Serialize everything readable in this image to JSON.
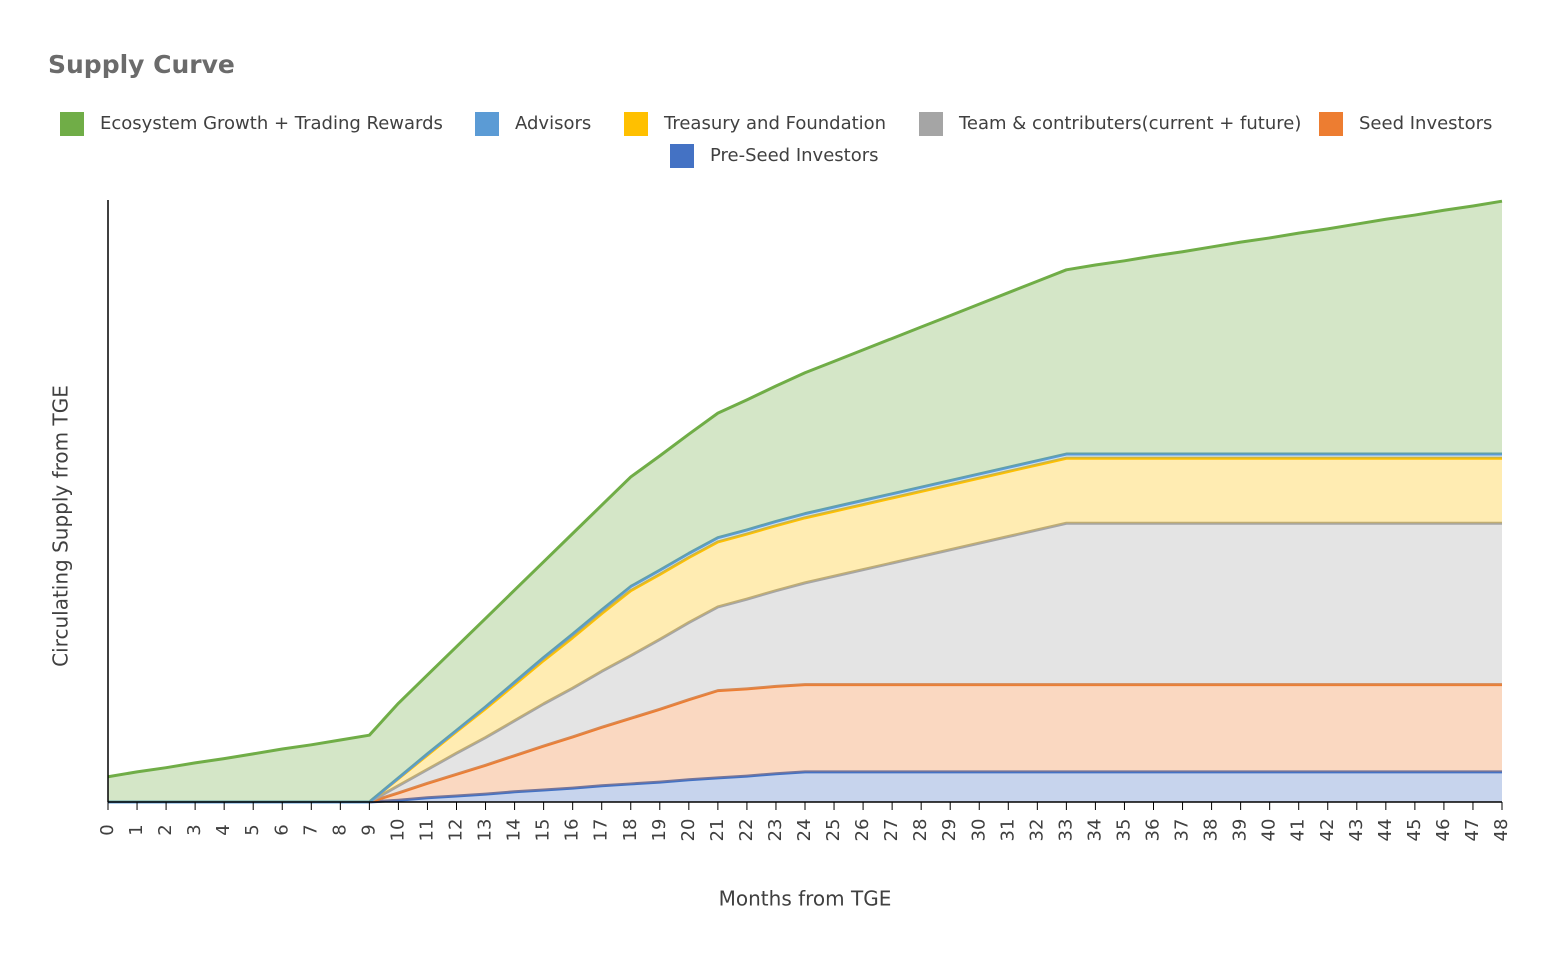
{
  "chart_data": {
    "type": "stacked_area",
    "title": "Supply Curve",
    "x_label": "Months from TGE",
    "y_label": "Circulating Supply from TGE",
    "categories": [
      "0",
      "1",
      "2",
      "3",
      "4",
      "5",
      "6",
      "7",
      "8",
      "9",
      "10",
      "11",
      "12",
      "13",
      "14",
      "15",
      "16",
      "17",
      "18",
      "19",
      "20",
      "21",
      "22",
      "23",
      "24",
      "25",
      "26",
      "27",
      "28",
      "29",
      "30",
      "31",
      "32",
      "33",
      "34",
      "35",
      "36",
      "37",
      "38",
      "39",
      "40",
      "41",
      "42",
      "43",
      "44",
      "45",
      "46",
      "47",
      "48"
    ],
    "ylim": [
      0,
      100
    ],
    "series": [
      {
        "name": "Ecosystem Growth + Trading Rewards",
        "color": "#70ad47",
        "values": [
          4.2,
          5.0,
          5.7,
          6.5,
          7.2,
          8.0,
          8.8,
          9.5,
          10.3,
          11.1,
          12.4,
          13.1,
          13.9,
          14.7,
          15.3,
          15.9,
          16.7,
          17.4,
          18.2,
          19.0,
          19.8,
          20.7,
          21.6,
          22.5,
          23.4,
          24.2,
          25.0,
          25.8,
          26.6,
          27.4,
          28.2,
          29.0,
          29.8,
          30.6,
          31.4,
          32.1,
          32.9,
          33.6,
          34.4,
          35.2,
          35.9,
          36.7,
          37.4,
          38.2,
          39.0,
          39.7,
          40.5,
          41.2,
          42.0
        ]
      },
      {
        "name": "Advisors",
        "color": "#5b9bd5",
        "values": [
          0,
          0,
          0,
          0,
          0,
          0,
          0,
          0,
          0,
          0,
          0.1,
          0.2,
          0.2,
          0.3,
          0.4,
          0.5,
          0.6,
          0.6,
          0.7,
          0.7,
          0.7,
          0.7,
          0.7,
          0.7,
          0.7,
          0.7,
          0.7,
          0.7,
          0.7,
          0.7,
          0.7,
          0.7,
          0.7,
          0.7,
          0.7,
          0.7,
          0.7,
          0.7,
          0.7,
          0.7,
          0.7,
          0.7,
          0.7,
          0.7,
          0.7,
          0.7,
          0.7,
          0.7,
          0.7
        ]
      },
      {
        "name": "Treasury and Foundation",
        "color": "#ffc000",
        "values": [
          0,
          0,
          0,
          0,
          0,
          0,
          0,
          0,
          0,
          0,
          1.2,
          2.4,
          3.6,
          4.8,
          6.0,
          7.2,
          8.4,
          9.6,
          10.8,
          10.8,
          10.8,
          10.8,
          10.8,
          10.8,
          10.8,
          10.8,
          10.8,
          10.8,
          10.8,
          10.8,
          10.8,
          10.8,
          10.8,
          10.8,
          10.8,
          10.8,
          10.8,
          10.8,
          10.8,
          10.8,
          10.8,
          10.8,
          10.8,
          10.8,
          10.8,
          10.8,
          10.8,
          10.8,
          10.8
        ]
      },
      {
        "name": "Team & contributers(current + future)",
        "color": "#a5a5a5",
        "values": [
          0,
          0,
          0,
          0,
          0,
          0,
          0,
          0,
          0,
          0,
          1.2,
          2.3,
          3.5,
          4.6,
          5.8,
          7.0,
          8.1,
          9.3,
          10.4,
          11.6,
          12.8,
          13.9,
          14.9,
          15.9,
          16.9,
          18.0,
          19.1,
          20.2,
          21.3,
          22.4,
          23.5,
          24.6,
          25.7,
          26.8,
          26.8,
          26.8,
          26.8,
          26.8,
          26.8,
          26.8,
          26.8,
          26.8,
          26.8,
          26.8,
          26.8,
          26.8,
          26.8,
          26.8,
          26.8
        ]
      },
      {
        "name": "Seed Investors",
        "color": "#ed7d31",
        "values": [
          0,
          0,
          0,
          0,
          0,
          0,
          0,
          0,
          0,
          0,
          1.2,
          2.4,
          3.6,
          4.8,
          6.0,
          7.3,
          8.5,
          9.7,
          10.9,
          12.1,
          13.3,
          14.5,
          14.5,
          14.5,
          14.5,
          14.5,
          14.5,
          14.5,
          14.5,
          14.5,
          14.5,
          14.5,
          14.5,
          14.5,
          14.5,
          14.5,
          14.5,
          14.5,
          14.5,
          14.5,
          14.5,
          14.5,
          14.5,
          14.5,
          14.5,
          14.5,
          14.5,
          14.5,
          14.5
        ]
      },
      {
        "name": "Pre-Seed Investors",
        "color": "#4472c4",
        "values": [
          0,
          0,
          0,
          0,
          0,
          0,
          0,
          0,
          0,
          0,
          0.3,
          0.7,
          1.0,
          1.3,
          1.7,
          2.0,
          2.3,
          2.7,
          3.0,
          3.3,
          3.7,
          4.0,
          4.3,
          4.7,
          5.0,
          5.0,
          5.0,
          5.0,
          5.0,
          5.0,
          5.0,
          5.0,
          5.0,
          5.0,
          5.0,
          5.0,
          5.0,
          5.0,
          5.0,
          5.0,
          5.0,
          5.0,
          5.0,
          5.0,
          5.0,
          5.0,
          5.0,
          5.0,
          5.0
        ]
      }
    ]
  }
}
